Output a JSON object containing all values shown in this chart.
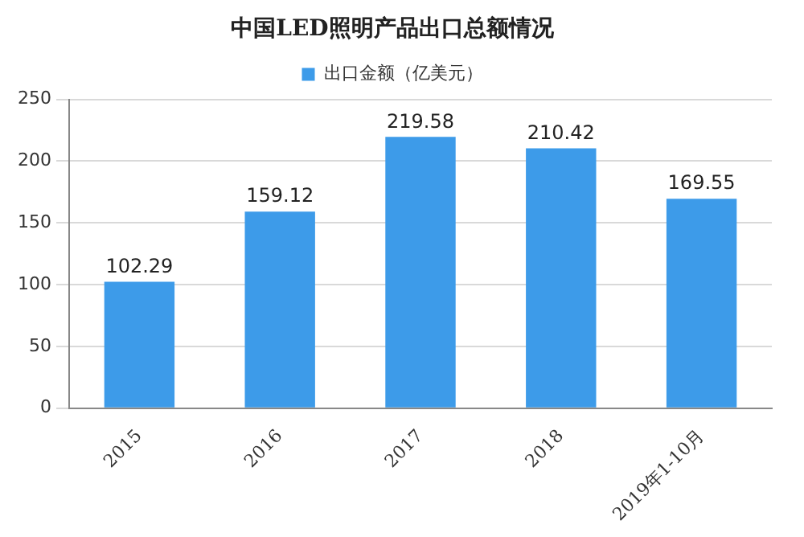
{
  "chart_data": {
    "type": "bar",
    "title": "中国LED照明产品出口总额情况",
    "categories": [
      "2015",
      "2016",
      "2017",
      "2018",
      "2019年1-10月"
    ],
    "series": [
      {
        "name": "出口金额（亿美元）",
        "color": "#3d9be9",
        "values": [
          102.29,
          159.12,
          219.58,
          210.42,
          169.55
        ]
      }
    ],
    "ylim": [
      0,
      250
    ],
    "yticks": [
      0,
      50,
      100,
      150,
      200,
      250
    ],
    "grid": "y",
    "legend": "top",
    "data_labels": true
  }
}
